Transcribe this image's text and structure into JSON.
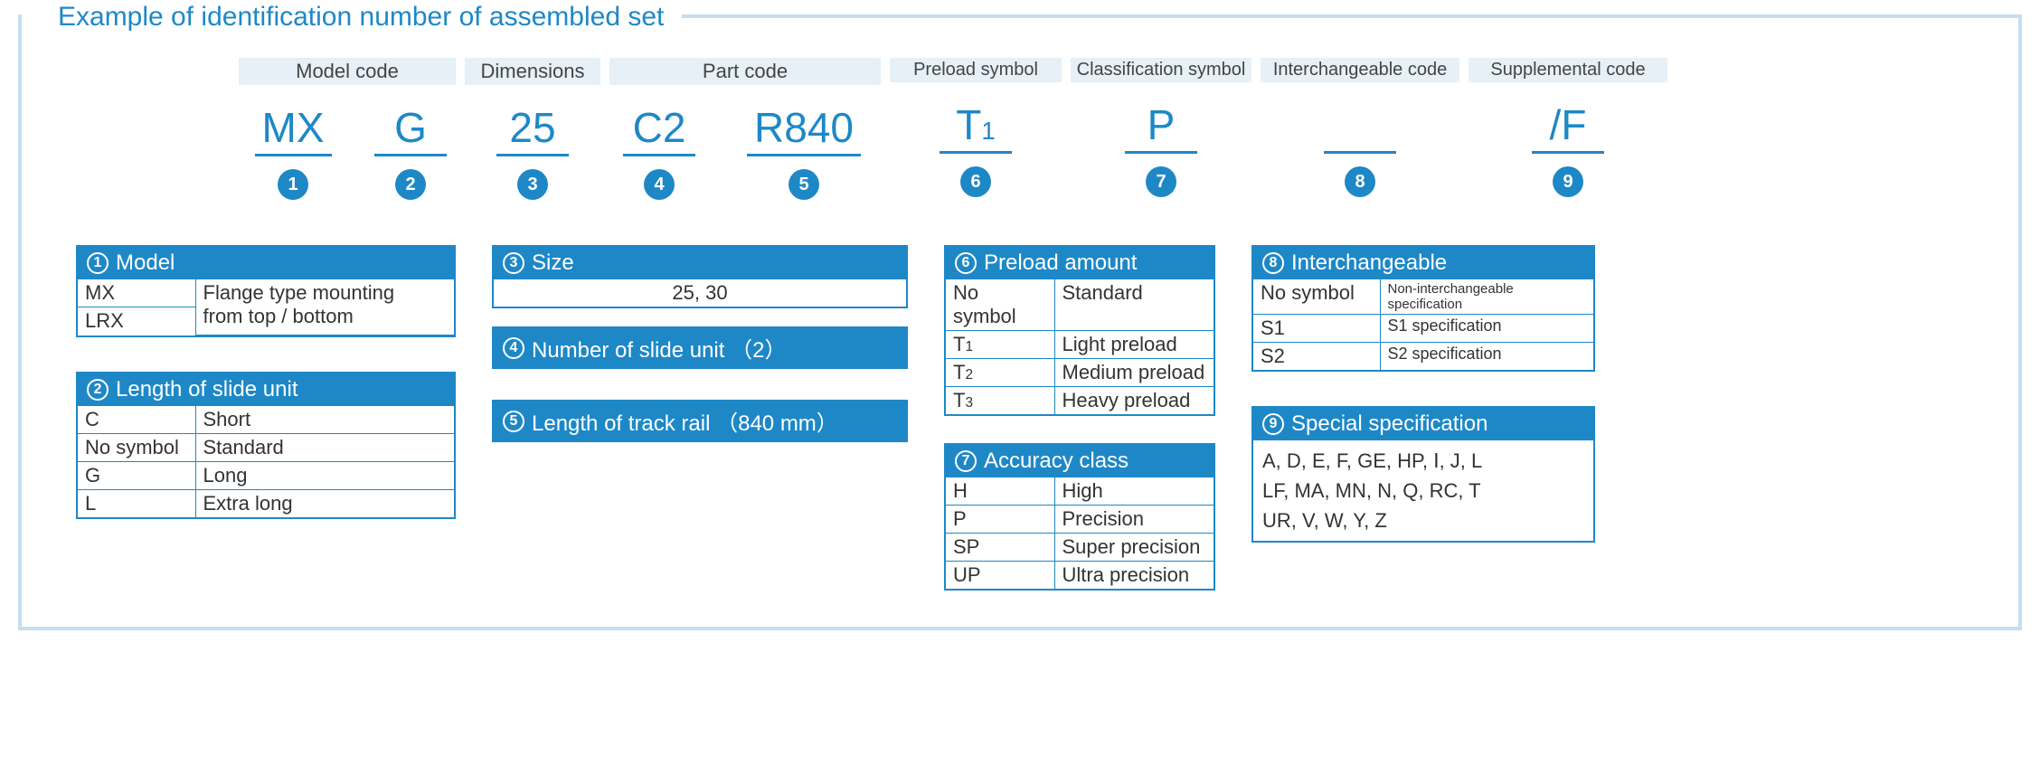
{
  "colors": {
    "accent": "#1e88c7",
    "panel": "#c5def0",
    "hdr_bg": "#e6f0f6"
  },
  "title": "Example of identification number of assembled set",
  "slots": [
    {
      "header": "Model code",
      "span": 2,
      "parts": [
        {
          "code": "MX",
          "badge": "1",
          "w": "w-mx"
        },
        {
          "code": "G",
          "badge": "2",
          "w": "w-g"
        }
      ]
    },
    {
      "header": "Dimensions",
      "span": 1,
      "parts": [
        {
          "code": "25",
          "badge": "3",
          "w": "w-25"
        }
      ]
    },
    {
      "header": "Part code",
      "span": 2,
      "parts": [
        {
          "code": "C2",
          "badge": "4",
          "w": "w-c2"
        },
        {
          "code": "R840",
          "badge": "5",
          "w": "w-r8"
        }
      ]
    },
    {
      "header": "Preload symbol",
      "span": 1,
      "narrow": true,
      "parts": [
        {
          "code_html": "T<span class='sub'>1</span>",
          "badge": "6",
          "w": "w-t1"
        }
      ]
    },
    {
      "header": "Classification symbol",
      "span": 1,
      "narrow": true,
      "parts": [
        {
          "code": "P",
          "badge": "7",
          "w": "w-p"
        }
      ]
    },
    {
      "header": "Interchangeable code",
      "span": 1,
      "narrow": true,
      "parts": [
        {
          "code": "",
          "badge": "8",
          "w": "w-ic"
        }
      ]
    },
    {
      "header": "Supplemental code",
      "span": 1,
      "narrow": true,
      "parts": [
        {
          "code": "/F",
          "badge": "9",
          "w": "w-f"
        }
      ]
    }
  ],
  "tables": {
    "t1": {
      "num": "1",
      "title": "Model",
      "colA_w": "tcol-a",
      "rows": [
        [
          "MX",
          "Flange type mounting"
        ],
        [
          "LRX",
          "from top / bottom"
        ]
      ],
      "mergeRight": true
    },
    "t2": {
      "num": "2",
      "title": "Length of slide unit",
      "colA_w": "tcol-a",
      "rows": [
        [
          "C",
          "Short"
        ],
        [
          "No symbol",
          "Standard"
        ],
        [
          "G",
          "Long"
        ],
        [
          "L",
          "Extra long"
        ]
      ]
    },
    "t3": {
      "num": "3",
      "title": "Size",
      "single": "25, 30"
    },
    "t4": {
      "num": "4",
      "title": "Number of slide unit （2）",
      "headonly": true
    },
    "t5": {
      "num": "5",
      "title": "Length of track rail （840 mm）",
      "headonly": true
    },
    "t6": {
      "num": "6",
      "title": "Preload amount",
      "colA_w": "tcol-a2",
      "rows_html": [
        [
          "No symbol",
          "Standard"
        ],
        [
          "T<span class='sub'>1</span>",
          "Light preload"
        ],
        [
          "T<span class='sub'>2</span>",
          "Medium preload"
        ],
        [
          "T<span class='sub'>3</span>",
          "Heavy preload"
        ]
      ]
    },
    "t7": {
      "num": "7",
      "title": "Accuracy class",
      "colA_w": "tcol-a2",
      "rows": [
        [
          "H",
          "High"
        ],
        [
          "P",
          "Precision"
        ],
        [
          "SP",
          "Super precision"
        ],
        [
          "UP",
          "Ultra precision"
        ]
      ]
    },
    "t8": {
      "num": "8",
      "title": "Interchangeable",
      "colA_w": "tcol-a3",
      "rows": [
        [
          "No symbol",
          "Non-interchangeable specification"
        ],
        [
          "S1",
          "S1 specification"
        ],
        [
          "S2",
          "S2 specification"
        ]
      ],
      "smallRight": true
    },
    "t9": {
      "num": "9",
      "title": "Special specification",
      "free": "A, D, E, F, GE, HP, Ⅰ, J, L\nLF, MA, MN, N, Q, RC, T\nUR, V, W, Y, Z"
    }
  }
}
